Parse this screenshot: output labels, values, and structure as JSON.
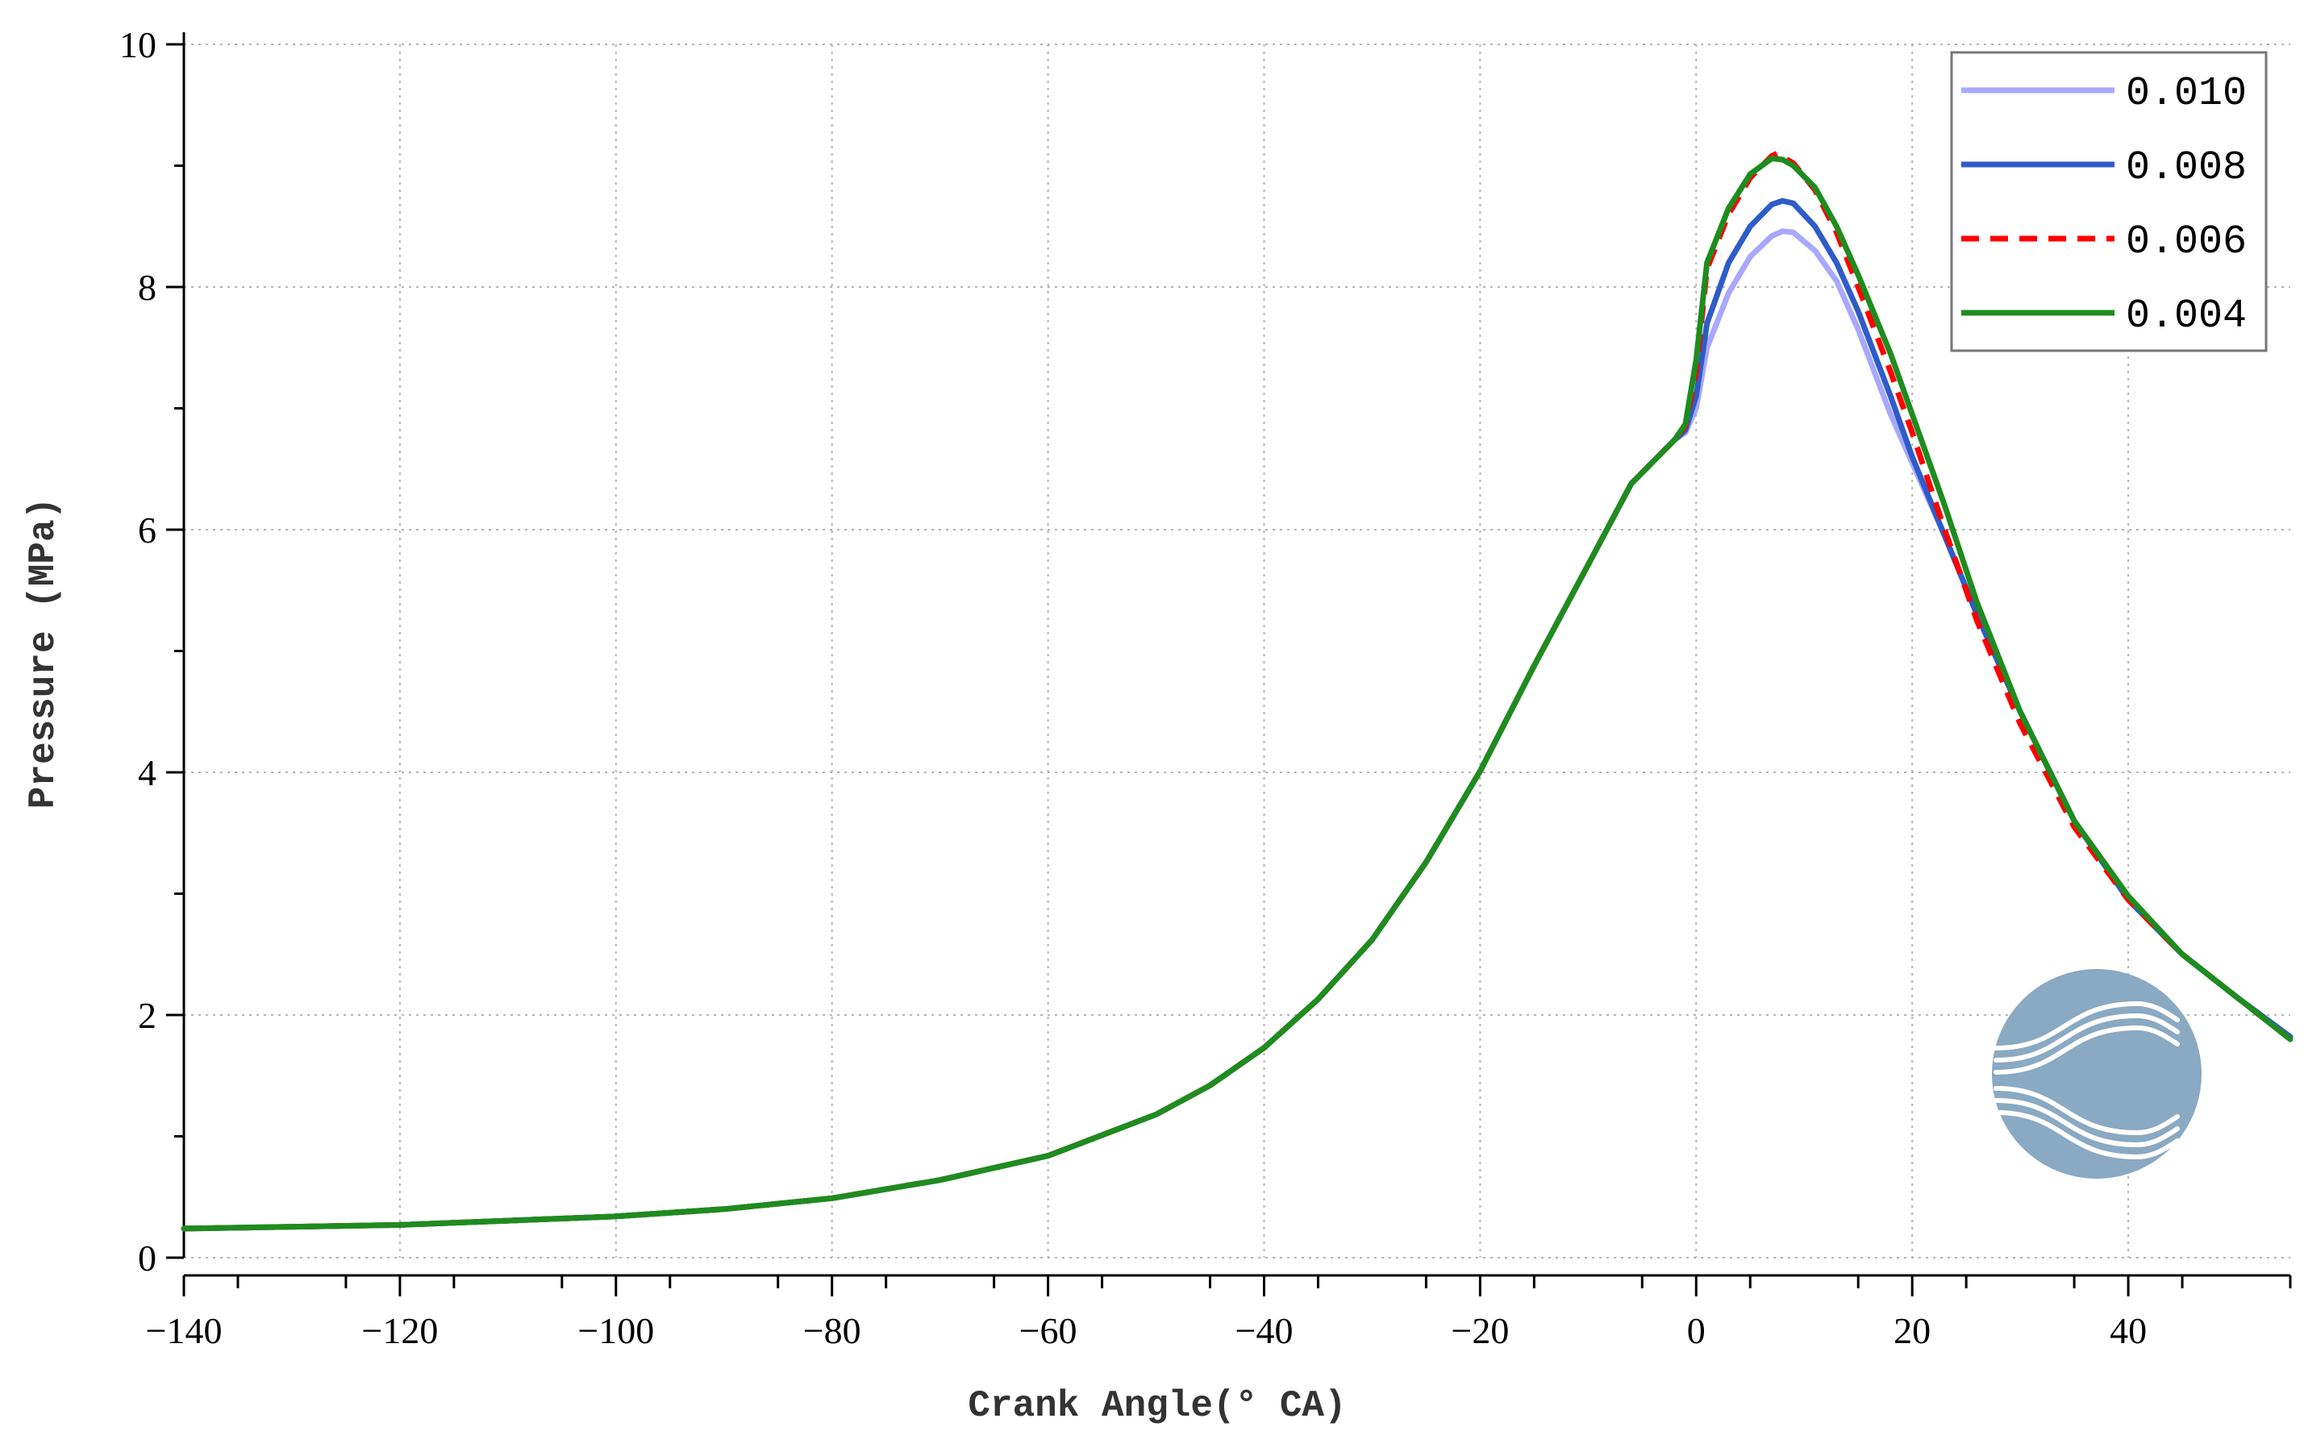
{
  "chart_data": {
    "type": "line",
    "xlabel": "Crank Angle(°  CA)",
    "ylabel": "Pressure (MPa)",
    "xlim": [
      -140,
      55
    ],
    "ylim": [
      0,
      10
    ],
    "xticks": [
      -140,
      -120,
      -100,
      -80,
      -60,
      -40,
      -20,
      0,
      20,
      40
    ],
    "yticks": [
      0,
      2,
      4,
      6,
      8,
      10
    ],
    "grid": true,
    "legend_position": "top-right",
    "series": [
      {
        "name": "0.010",
        "color": "#a8a8ff",
        "dash": "solid",
        "points": [
          [
            -140,
            0.24
          ],
          [
            -120,
            0.27
          ],
          [
            -100,
            0.34
          ],
          [
            -90,
            0.4
          ],
          [
            -80,
            0.49
          ],
          [
            -70,
            0.64
          ],
          [
            -60,
            0.84
          ],
          [
            -50,
            1.18
          ],
          [
            -45,
            1.42
          ],
          [
            -40,
            1.73
          ],
          [
            -35,
            2.13
          ],
          [
            -30,
            2.62
          ],
          [
            -25,
            3.26
          ],
          [
            -20,
            4.01
          ],
          [
            -15,
            4.88
          ],
          [
            -10,
            5.71
          ],
          [
            -6,
            6.38
          ],
          [
            -4,
            6.56
          ],
          [
            -2,
            6.74
          ],
          [
            -1,
            6.8
          ],
          [
            0,
            7.0
          ],
          [
            1,
            7.5
          ],
          [
            3,
            7.95
          ],
          [
            5,
            8.25
          ],
          [
            7,
            8.42
          ],
          [
            8,
            8.46
          ],
          [
            9,
            8.45
          ],
          [
            11,
            8.3
          ],
          [
            13,
            8.05
          ],
          [
            15,
            7.65
          ],
          [
            18,
            6.95
          ],
          [
            20,
            6.55
          ],
          [
            23,
            5.95
          ],
          [
            26,
            5.3
          ],
          [
            30,
            4.5
          ],
          [
            35,
            3.6
          ],
          [
            40,
            2.95
          ],
          [
            45,
            2.5
          ],
          [
            50,
            2.15
          ],
          [
            55,
            1.82
          ]
        ]
      },
      {
        "name": "0.008",
        "color": "#2e5cc8",
        "dash": "solid",
        "points": [
          [
            -140,
            0.24
          ],
          [
            -120,
            0.27
          ],
          [
            -100,
            0.34
          ],
          [
            -90,
            0.4
          ],
          [
            -80,
            0.49
          ],
          [
            -70,
            0.64
          ],
          [
            -60,
            0.84
          ],
          [
            -50,
            1.18
          ],
          [
            -45,
            1.42
          ],
          [
            -40,
            1.73
          ],
          [
            -35,
            2.13
          ],
          [
            -30,
            2.62
          ],
          [
            -25,
            3.26
          ],
          [
            -20,
            4.01
          ],
          [
            -15,
            4.88
          ],
          [
            -10,
            5.71
          ],
          [
            -6,
            6.38
          ],
          [
            -4,
            6.56
          ],
          [
            -2,
            6.74
          ],
          [
            -1,
            6.82
          ],
          [
            0,
            7.1
          ],
          [
            1,
            7.7
          ],
          [
            3,
            8.2
          ],
          [
            5,
            8.5
          ],
          [
            7,
            8.68
          ],
          [
            8,
            8.71
          ],
          [
            9,
            8.69
          ],
          [
            11,
            8.5
          ],
          [
            13,
            8.2
          ],
          [
            15,
            7.8
          ],
          [
            18,
            7.1
          ],
          [
            20,
            6.6
          ],
          [
            23,
            5.95
          ],
          [
            26,
            5.3
          ],
          [
            30,
            4.5
          ],
          [
            35,
            3.6
          ],
          [
            40,
            2.95
          ],
          [
            45,
            2.5
          ],
          [
            50,
            2.15
          ],
          [
            55,
            1.82
          ]
        ]
      },
      {
        "name": "0.006",
        "color": "#ff0000",
        "dash": "dashed",
        "points": [
          [
            -140,
            0.24
          ],
          [
            -120,
            0.27
          ],
          [
            -100,
            0.34
          ],
          [
            -90,
            0.4
          ],
          [
            -80,
            0.49
          ],
          [
            -70,
            0.64
          ],
          [
            -60,
            0.84
          ],
          [
            -50,
            1.18
          ],
          [
            -45,
            1.42
          ],
          [
            -40,
            1.73
          ],
          [
            -35,
            2.13
          ],
          [
            -30,
            2.62
          ],
          [
            -25,
            3.26
          ],
          [
            -20,
            4.01
          ],
          [
            -15,
            4.88
          ],
          [
            -10,
            5.71
          ],
          [
            -6,
            6.38
          ],
          [
            -4,
            6.56
          ],
          [
            -2,
            6.74
          ],
          [
            -1,
            6.85
          ],
          [
            0,
            7.3
          ],
          [
            1,
            8.15
          ],
          [
            3,
            8.6
          ],
          [
            5,
            8.9
          ],
          [
            7,
            9.08
          ],
          [
            7.5,
            9.1
          ],
          [
            9,
            9.02
          ],
          [
            11,
            8.8
          ],
          [
            13,
            8.45
          ],
          [
            15,
            8.0
          ],
          [
            18,
            7.3
          ],
          [
            20,
            6.8
          ],
          [
            23,
            6.0
          ],
          [
            26,
            5.25
          ],
          [
            30,
            4.4
          ],
          [
            35,
            3.55
          ],
          [
            40,
            2.95
          ],
          [
            45,
            2.5
          ],
          [
            50,
            2.15
          ],
          [
            55,
            1.8
          ]
        ]
      },
      {
        "name": "0.004",
        "color": "#1e8c1e",
        "dash": "solid",
        "points": [
          [
            -140,
            0.24
          ],
          [
            -120,
            0.27
          ],
          [
            -100,
            0.34
          ],
          [
            -90,
            0.4
          ],
          [
            -80,
            0.49
          ],
          [
            -70,
            0.64
          ],
          [
            -60,
            0.84
          ],
          [
            -50,
            1.18
          ],
          [
            -45,
            1.42
          ],
          [
            -40,
            1.73
          ],
          [
            -35,
            2.13
          ],
          [
            -30,
            2.62
          ],
          [
            -25,
            3.26
          ],
          [
            -20,
            4.01
          ],
          [
            -15,
            4.88
          ],
          [
            -10,
            5.71
          ],
          [
            -6,
            6.38
          ],
          [
            -4,
            6.56
          ],
          [
            -2,
            6.74
          ],
          [
            -1,
            6.87
          ],
          [
            0,
            7.4
          ],
          [
            1,
            8.2
          ],
          [
            3,
            8.65
          ],
          [
            5,
            8.93
          ],
          [
            7,
            9.06
          ],
          [
            8,
            9.05
          ],
          [
            9,
            9.0
          ],
          [
            11,
            8.82
          ],
          [
            13,
            8.5
          ],
          [
            15,
            8.1
          ],
          [
            18,
            7.45
          ],
          [
            20,
            6.95
          ],
          [
            23,
            6.2
          ],
          [
            26,
            5.4
          ],
          [
            30,
            4.5
          ],
          [
            35,
            3.6
          ],
          [
            40,
            2.98
          ],
          [
            45,
            2.5
          ],
          [
            50,
            2.15
          ],
          [
            55,
            1.8
          ]
        ]
      }
    ]
  },
  "watermark": {
    "icon": "wave-logo-icon",
    "color": "#8aa9c2"
  }
}
